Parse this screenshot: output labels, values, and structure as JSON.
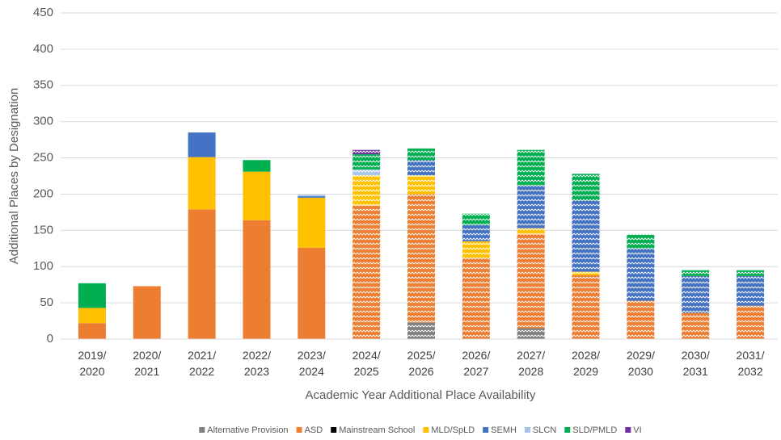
{
  "chart_data": {
    "type": "stacked_bar",
    "x_label": "Academic Year Additional Place Availability",
    "y_label": "Additional Places by Designation",
    "categories": [
      "2019/\n2020",
      "2020/\n2021",
      "2021/\n2022",
      "2022/\n2023",
      "2023/\n2024",
      "2024/\n2025",
      "2025/\n2026",
      "2026/\n2027",
      "2027/\n2028",
      "2028/\n2029",
      "2029/\n2030",
      "2030/\n2031",
      "2031/\n2032"
    ],
    "hatched": [
      false,
      false,
      false,
      false,
      false,
      true,
      true,
      true,
      true,
      true,
      true,
      true,
      true
    ],
    "series": [
      {
        "name": "Alternative Provision",
        "color": "#808080",
        "values": [
          0,
          0,
          0,
          0,
          0,
          0,
          23,
          0,
          15,
          0,
          0,
          0,
          0
        ]
      },
      {
        "name": "ASD",
        "color": "#ed7d31",
        "values": [
          22,
          73,
          179,
          164,
          126,
          184,
          177,
          112,
          130,
          88,
          53,
          36,
          46
        ]
      },
      {
        "name": "Mainstream School",
        "color": "#000000",
        "values": [
          0,
          0,
          0,
          0,
          0,
          0,
          0,
          0,
          0,
          0,
          0,
          0,
          0
        ]
      },
      {
        "name": "MLD/SpLD",
        "color": "#ffc000",
        "values": [
          21,
          0,
          72,
          67,
          69,
          42,
          26,
          23,
          8,
          5,
          0,
          0,
          0
        ]
      },
      {
        "name": "SEMH",
        "color": "#4472c4",
        "values": [
          0,
          0,
          34,
          0,
          2,
          0,
          21,
          22,
          59,
          98,
          72,
          51,
          41
        ]
      },
      {
        "name": "SLCN",
        "color": "#a9c4eb",
        "values": [
          0,
          0,
          0,
          0,
          2,
          8,
          0,
          0,
          0,
          0,
          0,
          0,
          0
        ]
      },
      {
        "name": "SLD/PMLD",
        "color": "#00b050",
        "values": [
          34,
          0,
          0,
          16,
          0,
          21,
          16,
          16,
          49,
          37,
          19,
          8,
          8
        ]
      },
      {
        "name": "VI",
        "color": "#7030a0",
        "values": [
          0,
          0,
          0,
          0,
          0,
          6,
          0,
          0,
          0,
          0,
          0,
          0,
          0
        ]
      }
    ],
    "ylim": [
      0,
      450
    ],
    "yticks": [
      0,
      50,
      100,
      150,
      200,
      250,
      300,
      350,
      400,
      450
    ],
    "grid": true,
    "legend": "bottom"
  }
}
